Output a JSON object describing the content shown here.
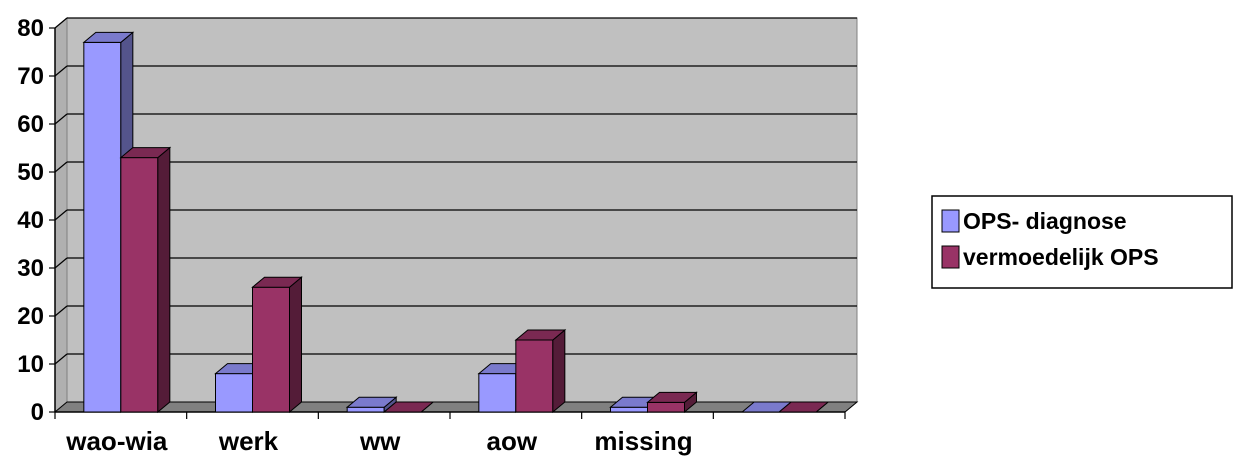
{
  "chart_data": {
    "type": "bar",
    "categories": [
      "wao-wia",
      "werk",
      "ww",
      "aow",
      "missing",
      ""
    ],
    "series": [
      {
        "name": "OPS- diagnose",
        "values": [
          77,
          8,
          1,
          8,
          1,
          0
        ],
        "color": "#9999ff"
      },
      {
        "name": "vermoedelijk OPS",
        "values": [
          53,
          26,
          0,
          15,
          2,
          0
        ],
        "color": "#993366"
      }
    ],
    "ylim": [
      0,
      80
    ],
    "yticks": [
      0,
      10,
      20,
      30,
      40,
      50,
      60,
      70,
      80
    ],
    "grid": true,
    "legend": "right",
    "wall_color": "#c0c0c0",
    "floor_color": "#808080"
  }
}
